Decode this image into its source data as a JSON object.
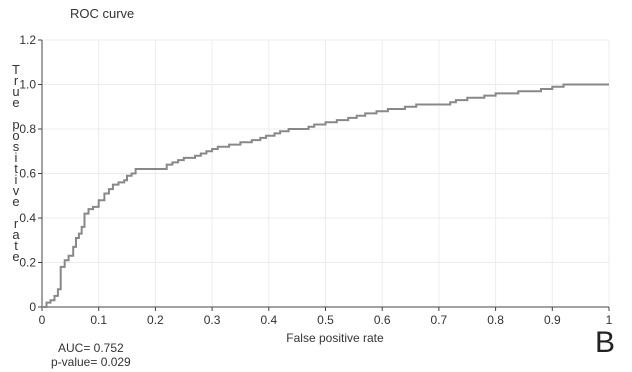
{
  "chart_data": {
    "type": "line",
    "title": "ROC curve",
    "xlabel": "False positive rate",
    "ylabel": "True positive rate",
    "xlim": [
      0,
      1
    ],
    "ylim": [
      0,
      1.2
    ],
    "x_ticks": [
      "0",
      "0.1",
      "0.2",
      "0.3",
      "0.4",
      "0.5",
      "0.6",
      "0.7",
      "0.8",
      "0.9",
      "1"
    ],
    "y_ticks": [
      "0",
      "0.2",
      "0.4",
      "0.6",
      "0.8",
      "1.0",
      "1.2"
    ],
    "grid": true,
    "line_color": "#888888",
    "series": [
      {
        "x": [
          0,
          0.008,
          0.008,
          0.015,
          0.015,
          0.022,
          0.022,
          0.028,
          0.028,
          0.033,
          0.033,
          0.04,
          0.04,
          0.047,
          0.047,
          0.055,
          0.055,
          0.06,
          0.06,
          0.065,
          0.065,
          0.07,
          0.07,
          0.075,
          0.075,
          0.082,
          0.082,
          0.09,
          0.09,
          0.1,
          0.1,
          0.11,
          0.11,
          0.118,
          0.118,
          0.125,
          0.125,
          0.135,
          0.135,
          0.145,
          0.145,
          0.15,
          0.15,
          0.158,
          0.158,
          0.165,
          0.165,
          0.22,
          0.22,
          0.23,
          0.23,
          0.24,
          0.24,
          0.25,
          0.25,
          0.27,
          0.27,
          0.28,
          0.28,
          0.29,
          0.29,
          0.3,
          0.3,
          0.31,
          0.31,
          0.33,
          0.33,
          0.35,
          0.35,
          0.37,
          0.37,
          0.385,
          0.385,
          0.395,
          0.395,
          0.41,
          0.41,
          0.42,
          0.42,
          0.435,
          0.435,
          0.47,
          0.47,
          0.48,
          0.48,
          0.5,
          0.5,
          0.52,
          0.52,
          0.54,
          0.54,
          0.555,
          0.555,
          0.57,
          0.57,
          0.59,
          0.59,
          0.61,
          0.61,
          0.64,
          0.64,
          0.66,
          0.66,
          0.72,
          0.72,
          0.73,
          0.73,
          0.75,
          0.75,
          0.78,
          0.78,
          0.8,
          0.8,
          0.84,
          0.84,
          0.88,
          0.88,
          0.9,
          0.9,
          0.92,
          0.92,
          0.94,
          0.94,
          0.95,
          0.95,
          0.96,
          0.96,
          1.0
        ],
        "y": [
          0,
          0,
          0.02,
          0.02,
          0.03,
          0.03,
          0.05,
          0.05,
          0.08,
          0.08,
          0.18,
          0.18,
          0.21,
          0.21,
          0.23,
          0.23,
          0.27,
          0.27,
          0.31,
          0.31,
          0.33,
          0.33,
          0.36,
          0.36,
          0.42,
          0.42,
          0.44,
          0.44,
          0.45,
          0.45,
          0.48,
          0.48,
          0.51,
          0.51,
          0.53,
          0.53,
          0.55,
          0.55,
          0.56,
          0.56,
          0.57,
          0.57,
          0.59,
          0.59,
          0.6,
          0.6,
          0.62,
          0.62,
          0.64,
          0.64,
          0.65,
          0.65,
          0.66,
          0.66,
          0.67,
          0.67,
          0.68,
          0.68,
          0.69,
          0.69,
          0.7,
          0.7,
          0.71,
          0.71,
          0.72,
          0.72,
          0.73,
          0.73,
          0.74,
          0.74,
          0.75,
          0.75,
          0.76,
          0.76,
          0.77,
          0.77,
          0.78,
          0.78,
          0.79,
          0.79,
          0.8,
          0.8,
          0.81,
          0.81,
          0.82,
          0.82,
          0.83,
          0.83,
          0.84,
          0.84,
          0.85,
          0.85,
          0.86,
          0.86,
          0.87,
          0.87,
          0.88,
          0.88,
          0.89,
          0.89,
          0.9,
          0.9,
          0.91,
          0.91,
          0.92,
          0.92,
          0.93,
          0.93,
          0.94,
          0.94,
          0.95,
          0.95,
          0.96,
          0.96,
          0.97,
          0.97,
          0.98,
          0.98,
          0.99,
          0.99,
          1.0,
          1.0,
          1.0,
          1.0,
          1.0,
          1.0,
          1.0,
          1.0
        ]
      }
    ]
  },
  "stats": {
    "auc": "AUC= 0.752",
    "pvalue": "p-value= 0.029"
  },
  "panel_label": "B"
}
